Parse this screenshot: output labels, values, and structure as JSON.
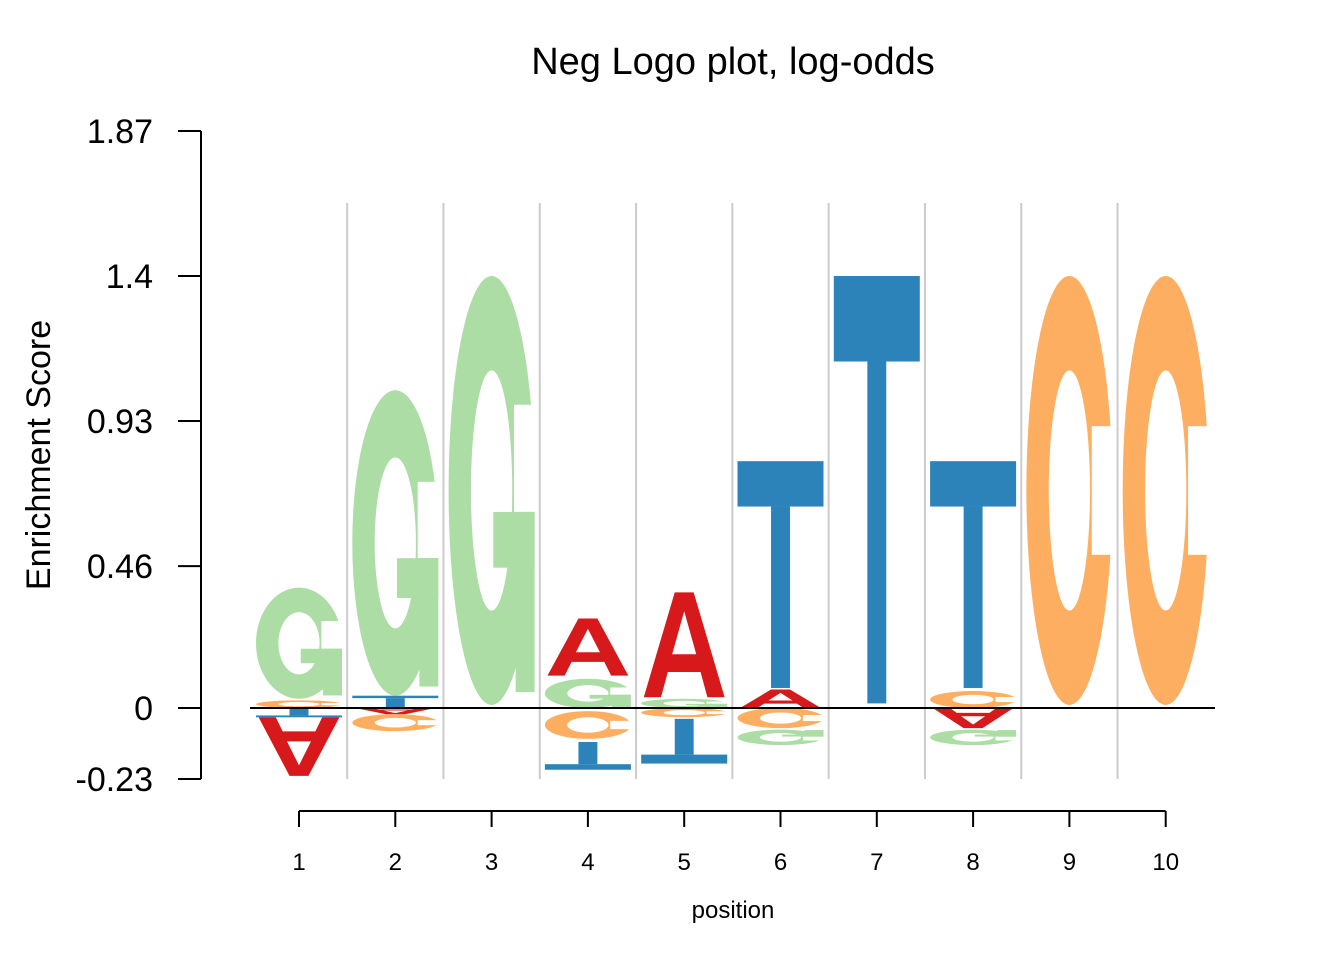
{
  "chart_data": {
    "type": "logo",
    "title": "Neg Logo plot, log-odds",
    "xlabel": "position",
    "ylabel": "Enrichment Score",
    "yticks": [
      "1.87",
      "1.4",
      "0.93",
      "0.46",
      "0",
      "-0.23"
    ],
    "ylim": [
      -0.23,
      1.87
    ],
    "positions": [
      1,
      2,
      3,
      4,
      5,
      6,
      7,
      8,
      9,
      10
    ],
    "colors": {
      "A": "#D7191C",
      "C": "#FDAE61",
      "G": "#ABDDA4",
      "T": "#2B83BA"
    },
    "stacks": [
      {
        "position": 1,
        "letters": [
          {
            "letter": "C",
            "from": 0.0,
            "to": 0.025
          },
          {
            "letter": "G",
            "from": 0.03,
            "to": 0.39
          },
          {
            "letter": "T",
            "from": -0.03,
            "to": 0.0
          },
          {
            "letter": "A",
            "from": -0.22,
            "to": -0.03
          }
        ]
      },
      {
        "position": 2,
        "letters": [
          {
            "letter": "T",
            "from": 0.0,
            "to": 0.04
          },
          {
            "letter": "G",
            "from": 0.04,
            "to": 1.03
          },
          {
            "letter": "A",
            "from": -0.02,
            "to": 0.0
          },
          {
            "letter": "C",
            "from": -0.075,
            "to": -0.02
          }
        ]
      },
      {
        "position": 3,
        "letters": [
          {
            "letter": "G",
            "from": 0.01,
            "to": 1.4
          }
        ]
      },
      {
        "position": 4,
        "letters": [
          {
            "letter": "G",
            "from": 0.0,
            "to": 0.095
          },
          {
            "letter": "A",
            "from": 0.105,
            "to": 0.29
          },
          {
            "letter": "C",
            "from": -0.1,
            "to": -0.01
          },
          {
            "letter": "T",
            "from": -0.2,
            "to": -0.11
          }
        ]
      },
      {
        "position": 5,
        "letters": [
          {
            "letter": "G",
            "from": 0.0,
            "to": 0.03
          },
          {
            "letter": "A",
            "from": 0.035,
            "to": 0.375
          },
          {
            "letter": "C",
            "from": -0.03,
            "to": 0.0
          },
          {
            "letter": "T",
            "from": -0.18,
            "to": -0.035
          }
        ]
      },
      {
        "position": 6,
        "letters": [
          {
            "letter": "A",
            "from": 0.0,
            "to": 0.06
          },
          {
            "letter": "T",
            "from": 0.065,
            "to": 0.8
          },
          {
            "letter": "C",
            "from": -0.065,
            "to": 0.0
          },
          {
            "letter": "G",
            "from": -0.12,
            "to": -0.07
          }
        ]
      },
      {
        "position": 7,
        "letters": [
          {
            "letter": "T",
            "from": 0.015,
            "to": 1.4
          }
        ]
      },
      {
        "position": 8,
        "letters": [
          {
            "letter": "C",
            "from": 0.0,
            "to": 0.055
          },
          {
            "letter": "T",
            "from": 0.065,
            "to": 0.8
          },
          {
            "letter": "A",
            "from": -0.065,
            "to": 0.0
          },
          {
            "letter": "G",
            "from": -0.12,
            "to": -0.07
          }
        ]
      },
      {
        "position": 9,
        "letters": [
          {
            "letter": "C",
            "from": 0.01,
            "to": 1.4
          }
        ]
      },
      {
        "position": 10,
        "letters": [
          {
            "letter": "C",
            "from": 0.01,
            "to": 1.4
          }
        ]
      }
    ]
  }
}
